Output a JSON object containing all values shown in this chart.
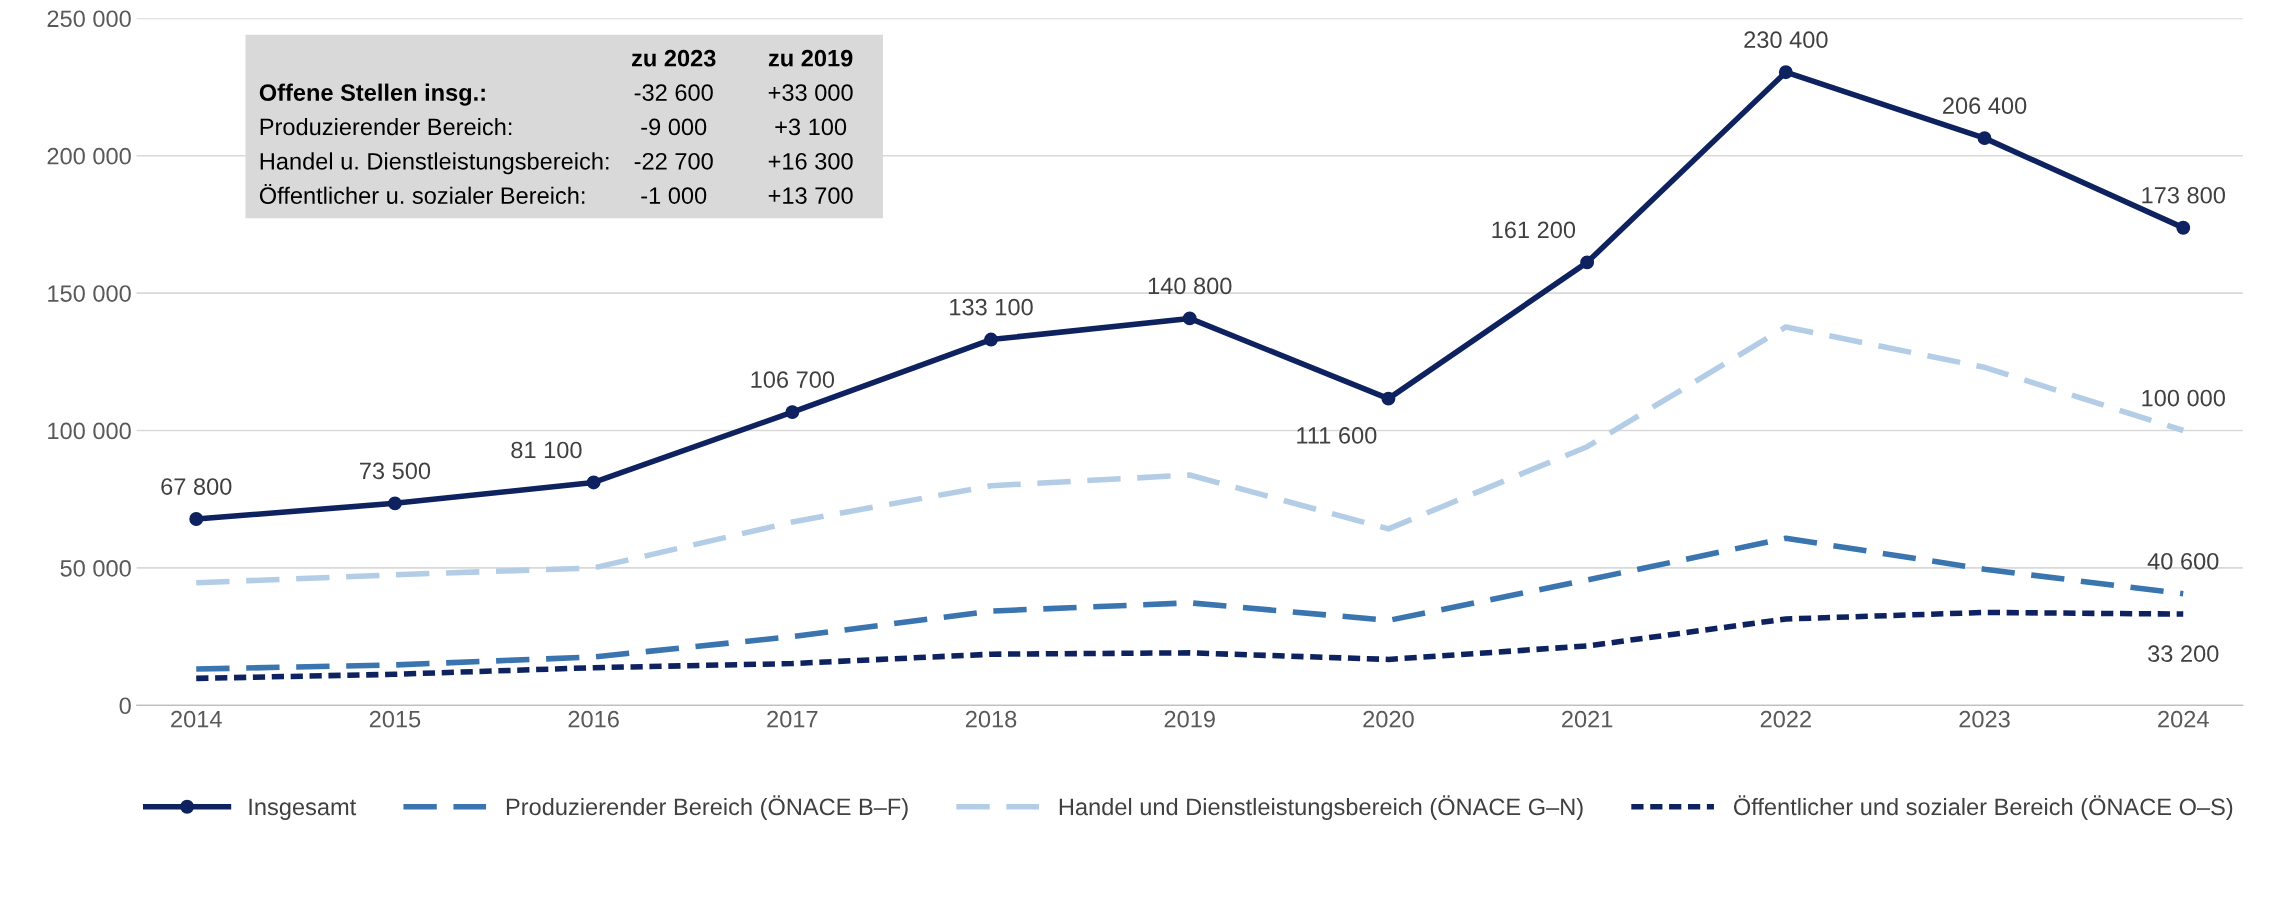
{
  "chart_data": {
    "type": "line",
    "categories": [
      "2014",
      "2015",
      "2016",
      "2017",
      "2018",
      "2019",
      "2020",
      "2021",
      "2022",
      "2023",
      "2024"
    ],
    "ylim": [
      0,
      250000
    ],
    "yticks": [
      {
        "value": 0,
        "label": "0"
      },
      {
        "value": 50000,
        "label": "50 000"
      },
      {
        "value": 100000,
        "label": "100 000"
      },
      {
        "value": 150000,
        "label": "150 000"
      },
      {
        "value": 200000,
        "label": "200 000"
      },
      {
        "value": 250000,
        "label": "250 000"
      }
    ],
    "grid": "y",
    "legend": "bottom",
    "series": [
      {
        "name": "Insgesamt",
        "color": "#0e2260",
        "marker": "circle",
        "line_style": "solid",
        "values": [
          67800,
          73500,
          81100,
          106700,
          133100,
          140800,
          111600,
          161200,
          230400,
          206400,
          173800
        ],
        "value_labels": [
          "67 800",
          "73 500",
          "81 100",
          "106 700",
          "133 100",
          "140 800",
          "111 600",
          "161 200",
          "230 400",
          "206 400",
          "173 800"
        ]
      },
      {
        "name": "Produzierender Bereich (ÖNACE B–F)",
        "color": "#3a75b0",
        "marker": "none",
        "line_style": "dashed",
        "values": [
          13200,
          14700,
          17600,
          25000,
          34300,
          37300,
          30900,
          45600,
          60800,
          49500,
          40600
        ],
        "value_labels": [
          null,
          null,
          null,
          null,
          null,
          null,
          null,
          null,
          null,
          null,
          "40 600"
        ]
      },
      {
        "name": "Handel und Dienstleistungsbereich (ÖNACE G–N)",
        "color": "#b4cde6",
        "marker": "none",
        "line_style": "dashed",
        "values": [
          44600,
          47500,
          50000,
          66700,
          79900,
          83800,
          64200,
          94100,
          137700,
          123000,
          100000
        ],
        "value_labels": [
          null,
          null,
          null,
          null,
          null,
          null,
          null,
          null,
          null,
          null,
          "100 000"
        ]
      },
      {
        "name": "Öffentlicher und sozialer Bereich (ÖNACE O–S)",
        "color": "#0e2260",
        "marker": "none",
        "line_style": "dotted",
        "values": [
          9800,
          11300,
          13700,
          15200,
          18600,
          19100,
          16700,
          21600,
          31400,
          33800,
          33200
        ],
        "value_labels": [
          null,
          null,
          null,
          null,
          null,
          null,
          null,
          null,
          null,
          null,
          "33 200"
        ]
      }
    ],
    "annotations": [
      "zu 2023",
      "zu 2019",
      "Offene Stellen insg.:",
      "-32 600",
      "+33 000",
      "Produzierender Bereich:",
      "-9 000",
      "+3 100",
      "Handel u. Dienstleistungsbereich:",
      "-22 700",
      "+16 300",
      "Öffentlicher u. sozialer Bereich:",
      "-1 000",
      "+13 700"
    ]
  }
}
